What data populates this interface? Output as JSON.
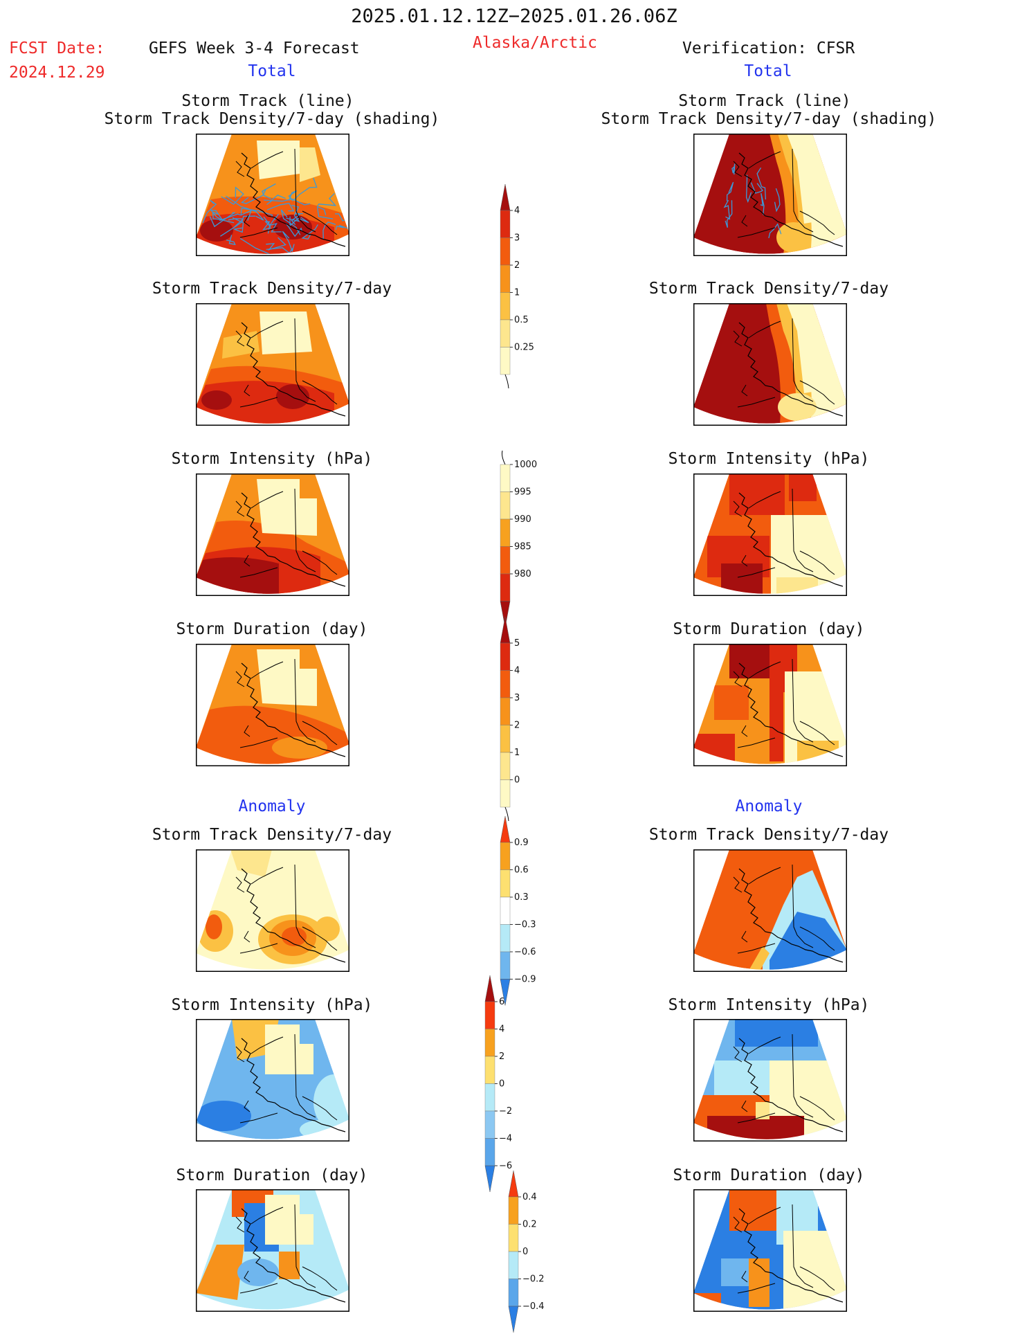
{
  "header": {
    "period": "2025.01.12.12Z−2025.01.26.06Z",
    "fcst_label": "FCST Date:",
    "fcst_date": "2024.12.29",
    "forecast_title": "GEFS Week 3-4 Forecast",
    "region": "Alaska/Arctic",
    "verification": "Verification: CFSR"
  },
  "sections": {
    "total_left": "Total",
    "total_right": "Total",
    "anomaly_left": "Anomaly",
    "anomaly_right": "Anomaly"
  },
  "panel_titles": {
    "track_line": "Storm Track (line)",
    "track_shading": "Storm Track Density/7-day (shading)",
    "density": "Storm Track Density/7-day",
    "intensity": "Storm Intensity (hPa)",
    "duration": "Storm Duration (day)"
  },
  "colorbars": {
    "density_total": {
      "labels": [
        "4",
        "3",
        "2",
        "1",
        "0.5",
        "0.25"
      ],
      "colors": [
        "#a50f0f",
        "#dd2a10",
        "#f25c0e",
        "#f7921b",
        "#fbc143",
        "#fde68e",
        "#fef9c5"
      ]
    },
    "intensity_total": {
      "labels": [
        "1000",
        "995",
        "990",
        "985",
        "980"
      ],
      "colors": [
        "#fef9c5",
        "#fde68e",
        "#f7a11f",
        "#f25c0e",
        "#dd2a10",
        "#a50f0f"
      ]
    },
    "duration_total": {
      "labels": [
        "5",
        "4",
        "3",
        "2",
        "1",
        "0"
      ],
      "colors": [
        "#a50f0f",
        "#dd2a10",
        "#f25c0e",
        "#f7921b",
        "#fbc143",
        "#fde68e",
        "#fef9c5"
      ]
    },
    "density_anom": {
      "labels": [
        "0.9",
        "0.6",
        "0.3",
        "−0.3",
        "−0.6",
        "−0.9"
      ],
      "colors": [
        "#f53b10",
        "#f7a11f",
        "#fde070",
        "#ffffff",
        "#b5eaf7",
        "#6fb6ee",
        "#2b7fe3"
      ]
    },
    "intensity_anom": {
      "labels": [
        "6",
        "4",
        "2",
        "0",
        "−2",
        "−4",
        "−6"
      ],
      "colors": [
        "#a50f0f",
        "#f53b10",
        "#f7a11f",
        "#fde070",
        "#b5eaf7",
        "#8cc8f2",
        "#5aa6ea",
        "#2b7fe3"
      ]
    },
    "duration_anom": {
      "labels": [
        "0.4",
        "0.2",
        "0",
        "−0.2",
        "−0.4"
      ],
      "colors": [
        "#f53b10",
        "#f7a11f",
        "#fde070",
        "#b5eaf7",
        "#5aa6ea",
        "#2b7fe3"
      ]
    }
  },
  "colors": {
    "dark_red": "#a50f0f",
    "red": "#dd2a10",
    "orange_red": "#f25c0e",
    "orange": "#f7921b",
    "light_orange": "#fbc143",
    "yellow": "#fde68e",
    "pale": "#fef9c5",
    "blue_dark": "#2b7fe3",
    "blue_mid": "#6fb6ee",
    "blue_light": "#b5eaf7",
    "track_line": "#3a9ad9"
  }
}
